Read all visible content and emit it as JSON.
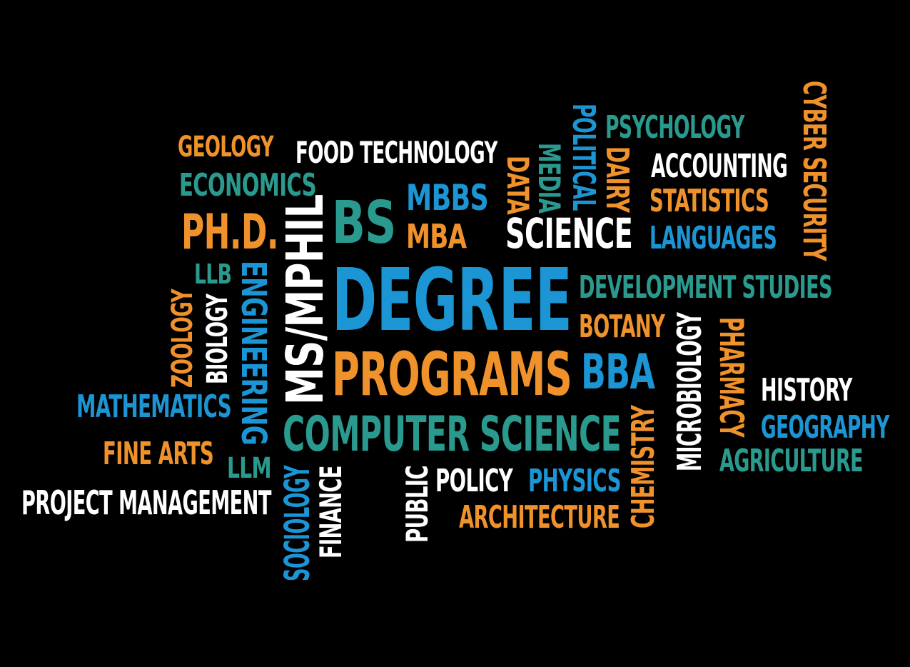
{
  "colors": {
    "background": "#000000",
    "orange": "#f0922c",
    "teal": "#2a9a8e",
    "blue": "#1c95d4",
    "white": "#ffffff"
  },
  "words": {
    "geology": "GEOLOGY",
    "food_technology": "FOOD TECHNOLOGY",
    "economics": "ECONOMICS",
    "phd": "PH.D.",
    "ms_mphil": "MS/MPHIL",
    "bs": "BS",
    "mbbs": "MBBS",
    "mba": "MBA",
    "data": "DATA",
    "media": "MEDIA",
    "political": "POLITICAL",
    "dairy": "DAIRY",
    "science": "SCIENCE",
    "psychology": "PSYCHOLOGY",
    "accounting": "ACCOUNTING",
    "statistics": "STATISTICS",
    "languages": "LANGUAGES",
    "cyber_security": "CYBER SECURITY",
    "llb": "LLB",
    "zoology": "ZOOLOGY",
    "biology": "BIOLOGY",
    "engineering": "ENGINEERING",
    "degree": "DEGREE",
    "programs": "PROGRAMS",
    "development_studies": "DEVELOPMENT STUDIES",
    "botany": "BOTANY",
    "bba": "BBA",
    "microbiology": "MICROBIOLOGY",
    "pharmacy": "PHARMACY",
    "history": "HISTORY",
    "geography": "GEOGRAPHY",
    "agriculture": "AGRICULTURE",
    "mathematics": "MATHEMATICS",
    "fine_arts": "FINE ARTS",
    "llm": "LLM",
    "project_management": "PROJECT MANAGEMENT",
    "computer_science": "COMPUTER SCIENCE",
    "sociology": "SOCIOLOGY",
    "finance": "FINANCE",
    "public": "PUBLIC",
    "policy": "POLICY",
    "physics": "PHYSICS",
    "architecture": "ARCHITECTURE",
    "chemistry": "CHEMISTRY"
  }
}
